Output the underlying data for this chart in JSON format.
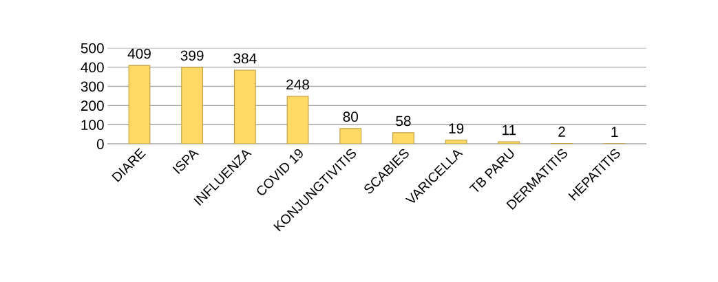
{
  "chart_data": {
    "type": "bar",
    "categories": [
      "DIARE",
      "ISPA",
      "INFLUENZA",
      "COVID 19",
      "KONJUNGTIVITIS",
      "SCABIES",
      "VARICELLA",
      "TB PARU",
      "DERMATITIS",
      "HEPATITIS"
    ],
    "values": [
      409,
      399,
      384,
      248,
      80,
      58,
      19,
      11,
      2,
      1
    ],
    "color": "#ffd966",
    "ylim": [
      0,
      500
    ],
    "yticks": [
      0,
      100,
      200,
      300,
      400,
      500
    ],
    "grid": "y",
    "data_labels": true
  }
}
